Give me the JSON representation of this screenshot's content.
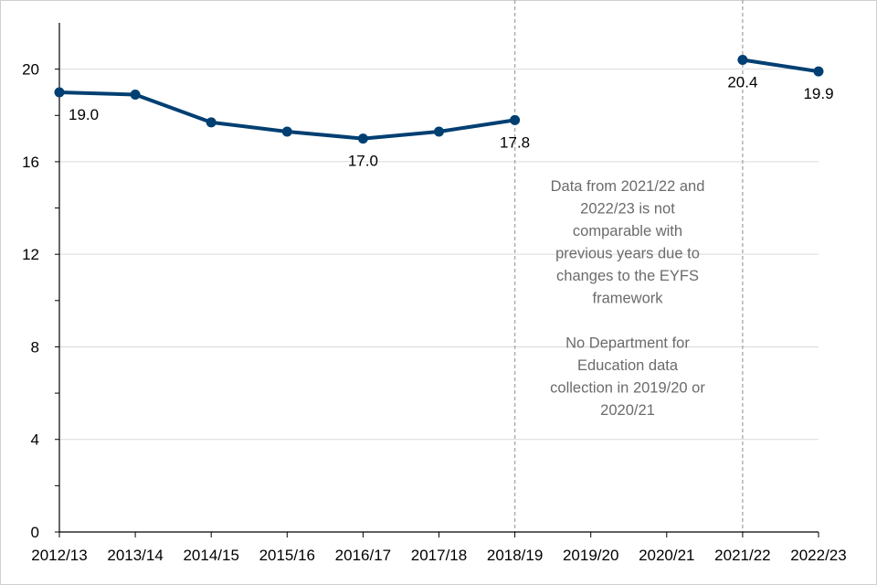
{
  "chart_data": {
    "type": "line",
    "title": "",
    "xlabel": "",
    "ylabel": "",
    "categories": [
      "2012/13",
      "2013/14",
      "2014/15",
      "2015/16",
      "2016/17",
      "2017/18",
      "2018/19",
      "2019/20",
      "2020/21",
      "2021/22",
      "2022/23"
    ],
    "y_ticks": [
      0,
      4,
      8,
      12,
      16,
      20
    ],
    "y_tick_labels": [
      "0",
      "4",
      "8",
      "12",
      "16",
      "20"
    ],
    "ylim": [
      0,
      22
    ],
    "grid": "horizontal",
    "series": [
      {
        "name": "Series",
        "color": "#003f72",
        "segments": [
          {
            "x": [
              "2012/13",
              "2013/14",
              "2014/15",
              "2015/16",
              "2016/17",
              "2017/18",
              "2018/19"
            ],
            "y": [
              19.0,
              18.9,
              17.7,
              17.3,
              17.0,
              17.3,
              17.8
            ]
          },
          {
            "x": [
              "2021/22",
              "2022/23"
            ],
            "y": [
              20.4,
              19.9
            ]
          }
        ]
      }
    ],
    "data_labels": [
      {
        "category": "2012/13",
        "value": 19.0,
        "text": "19.0",
        "position": "below-right"
      },
      {
        "category": "2016/17",
        "value": 17.0,
        "text": "17.0",
        "position": "below"
      },
      {
        "category": "2018/19",
        "value": 17.8,
        "text": "17.8",
        "position": "below"
      },
      {
        "category": "2021/22",
        "value": 20.4,
        "text": "20.4",
        "position": "below"
      },
      {
        "category": "2022/23",
        "value": 19.9,
        "text": "19.9",
        "position": "below"
      }
    ],
    "reference_lines": [
      {
        "category": "2018/19",
        "style": "dashed",
        "color": "#a6a6a6"
      },
      {
        "category": "2021/22",
        "style": "dashed",
        "color": "#a6a6a6"
      }
    ],
    "annotation": {
      "paragraphs": [
        [
          "Data from 2021/22 and",
          "2022/23 is not",
          "comparable with",
          "previous years due to",
          "changes to the EYFS",
          "framework"
        ],
        [
          "No Department for",
          "Education data",
          "collection in 2019/20 or",
          "2020/21"
        ]
      ]
    }
  }
}
